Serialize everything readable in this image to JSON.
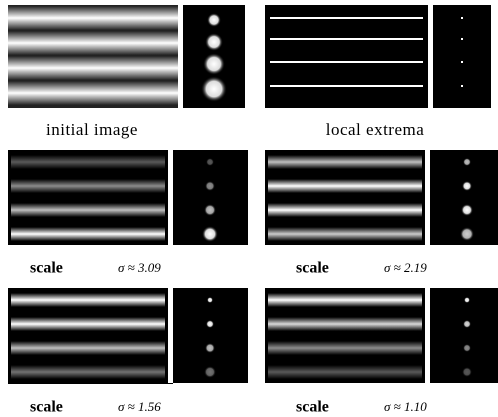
{
  "panels": [
    {
      "caption": "initial image"
    },
    {
      "caption": "local extrema"
    },
    {
      "caption": "scale",
      "sigma": "σ ≈ 3.09"
    },
    {
      "caption": "scale",
      "sigma": "σ ≈ 2.19"
    },
    {
      "caption": "scale",
      "sigma": "σ ≈ 1.56"
    },
    {
      "caption": "scale",
      "sigma": "σ ≈ 1.10"
    }
  ]
}
